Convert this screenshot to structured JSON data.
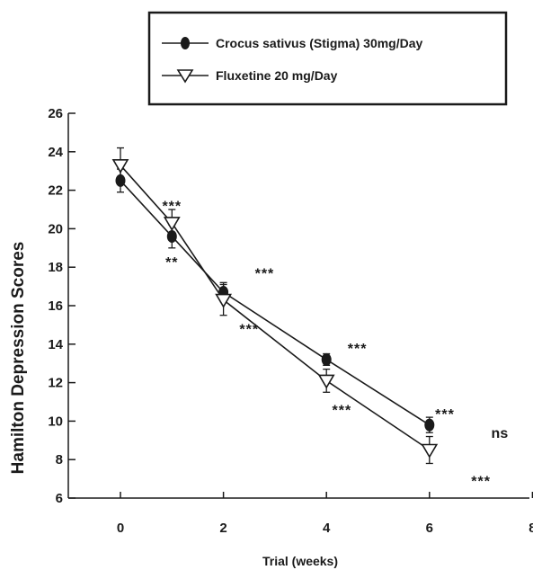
{
  "chart_data": {
    "type": "line",
    "xlabel": "Trial (weeks)",
    "ylabel": "Hamilton Depression Scores",
    "xlim": [
      -1,
      8
    ],
    "ylim": [
      6,
      26
    ],
    "x_ticks": [
      0,
      2,
      4,
      6,
      8
    ],
    "y_ticks": [
      6,
      8,
      10,
      12,
      14,
      16,
      18,
      20,
      22,
      24,
      26
    ],
    "grid": false,
    "legend_position": "top-center",
    "series": [
      {
        "name": "Crocus sativus (Stigma) 30mg/Day",
        "marker": "filled-circle",
        "color": "#1a1a1a",
        "points": [
          {
            "x": 0,
            "y": 22.5,
            "err": 0.6
          },
          {
            "x": 1,
            "y": 19.6,
            "err": 0.6
          },
          {
            "x": 2,
            "y": 16.7,
            "err": 0.5
          },
          {
            "x": 4,
            "y": 13.2,
            "err": 0.3
          },
          {
            "x": 6,
            "y": 9.8,
            "err": 0.4
          }
        ]
      },
      {
        "name": "Fluxetine 20 mg/Day",
        "marker": "open-triangle-down",
        "color": "#1a1a1a",
        "points": [
          {
            "x": 0,
            "y": 23.3,
            "err": 0.9
          },
          {
            "x": 1,
            "y": 20.3,
            "err": 0.7
          },
          {
            "x": 2,
            "y": 16.3,
            "err": 0.8
          },
          {
            "x": 4,
            "y": 12.1,
            "err": 0.6
          },
          {
            "x": 6,
            "y": 8.5,
            "err": 0.7
          }
        ]
      }
    ],
    "annotations": [
      {
        "text": "***",
        "x": 1,
        "y": 21.2
      },
      {
        "text": "**",
        "x": 1,
        "y": 18.3
      },
      {
        "text": "***",
        "x": 2.8,
        "y": 17.7
      },
      {
        "text": "***",
        "x": 2.5,
        "y": 14.8
      },
      {
        "text": "***",
        "x": 4.6,
        "y": 13.8
      },
      {
        "text": "***",
        "x": 4.3,
        "y": 10.6
      },
      {
        "text": "***",
        "x": 6.3,
        "y": 10.4
      },
      {
        "text": "ns",
        "x": 7.2,
        "y": 9.4
      },
      {
        "text": "***",
        "x": 7.0,
        "y": 6.9
      }
    ]
  }
}
